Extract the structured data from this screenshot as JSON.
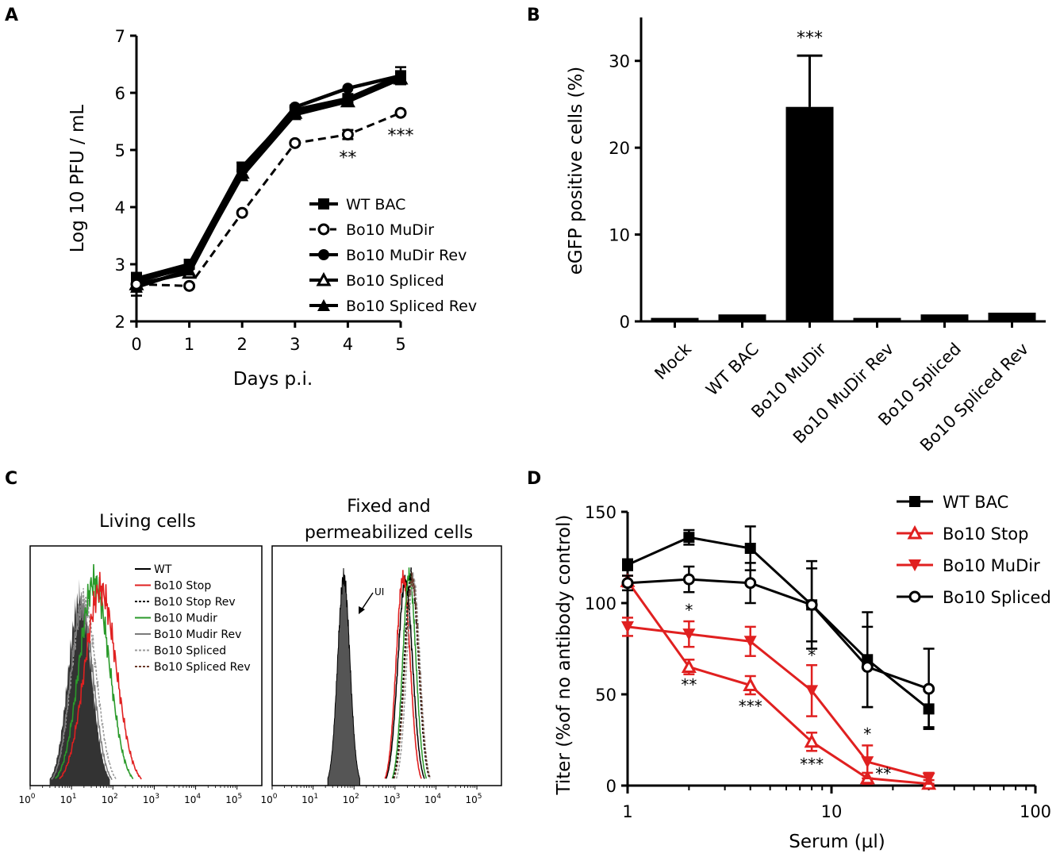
{
  "panels": {
    "A": "A",
    "B": "B",
    "C": "C",
    "D": "D"
  },
  "chart_data": [
    {
      "id": "A",
      "type": "line",
      "xlabel": "Days p.i.",
      "ylabel": "Log 10 PFU / mL",
      "xlim": [
        0,
        5
      ],
      "ylim": [
        2,
        7
      ],
      "xticks": [
        "0",
        "1",
        "2",
        "3",
        "4",
        "5"
      ],
      "yticks": [
        "2",
        "3",
        "4",
        "5",
        "6",
        "7"
      ],
      "x": [
        0,
        1,
        2,
        3,
        4,
        5
      ],
      "series": [
        {
          "name": "WT BAC",
          "marker": "square",
          "style": "solid",
          "values": [
            2.75,
            3.0,
            4.7,
            5.7,
            5.9,
            6.3
          ],
          "err": [
            0.08,
            0.05,
            0.08,
            0.05,
            0.05,
            0.15
          ]
        },
        {
          "name": "Bo10 MuDir",
          "marker": "circle-open",
          "style": "dashed",
          "values": [
            2.65,
            2.62,
            3.9,
            5.12,
            5.27,
            5.65
          ],
          "err": [
            0.2,
            0.05,
            0.05,
            0.06,
            0.08,
            0.05
          ]
        },
        {
          "name": "Bo10 MuDir Rev",
          "marker": "circle",
          "style": "solid",
          "values": [
            2.7,
            2.95,
            4.65,
            5.75,
            6.08,
            6.3
          ],
          "err": [
            0.1,
            0.05,
            0.05,
            0.05,
            0.05,
            0.05
          ]
        },
        {
          "name": "Bo10 Spliced",
          "marker": "triangle-open",
          "style": "solid",
          "values": [
            2.65,
            2.85,
            4.6,
            5.65,
            5.85,
            6.25
          ],
          "err": [
            0.08,
            0.05,
            0.05,
            0.05,
            0.05,
            0.05
          ]
        },
        {
          "name": "Bo10 Spliced Rev",
          "marker": "triangle",
          "style": "solid",
          "values": [
            2.6,
            2.9,
            4.55,
            5.62,
            5.85,
            6.25
          ],
          "err": [
            0.08,
            0.05,
            0.05,
            0.05,
            0.05,
            0.05
          ]
        }
      ],
      "annotations": [
        {
          "x": 4,
          "label": "**"
        },
        {
          "x": 5,
          "label": "***"
        }
      ]
    },
    {
      "id": "B",
      "type": "bar",
      "ylabel": "eGFP positive cells (%)",
      "ylim": [
        0,
        35
      ],
      "yticks": [
        "0",
        "10",
        "20",
        "30"
      ],
      "categories": [
        "Mock",
        "WT BAC",
        "Bo10 MuDir",
        "Bo10 MuDir Rev",
        "Bo10 Spliced",
        "Bo10 Spliced Rev"
      ],
      "values": [
        0.4,
        0.8,
        24.7,
        0.4,
        0.8,
        1.0
      ],
      "err": [
        0.05,
        0.1,
        5.9,
        0.05,
        0.1,
        0.2
      ],
      "annotations": [
        {
          "category": "Bo10 MuDir",
          "label": "***"
        }
      ]
    },
    {
      "id": "C",
      "type": "area",
      "subplots": [
        {
          "title": "Living cells"
        },
        {
          "title_line1": "Fixed and",
          "title_line2": "permeabilized cells",
          "annotation": "UI"
        }
      ],
      "xticks": [
        "10^0",
        "10^1",
        "10^2",
        "10^3",
        "10^4",
        "10^5"
      ],
      "xscale": "log",
      "xlim": [
        1,
        100000
      ],
      "legend": [
        {
          "name": "WT",
          "color": "#000000",
          "style": "solid"
        },
        {
          "name": "Bo10 Stop",
          "color": "#e02020",
          "style": "solid"
        },
        {
          "name": "Bo10 Stop Rev",
          "color": "#000000",
          "style": "dotted"
        },
        {
          "name": "Bo10 Mudir",
          "color": "#2a9a2a",
          "style": "solid"
        },
        {
          "name": "Bo10 Mudir Rev",
          "color": "#7a7a7a",
          "style": "solid"
        },
        {
          "name": "Bo10 Spliced",
          "color": "#999999",
          "style": "dotted"
        },
        {
          "name": "Bo10 Spliced Rev",
          "color": "#6b3a2a",
          "style": "dotted"
        }
      ]
    },
    {
      "id": "D",
      "type": "line",
      "xlabel": "Serum (µl)",
      "ylabel": "Titer (%of no antibody control)",
      "xscale": "log",
      "xlim": [
        1,
        100
      ],
      "ylim": [
        0,
        150
      ],
      "xticks": [
        "1",
        "10",
        "100"
      ],
      "yticks": [
        "0",
        "50",
        "100",
        "150"
      ],
      "x": [
        1,
        2,
        4,
        8,
        15,
        30
      ],
      "series": [
        {
          "name": "WT BAC",
          "color": "#000000",
          "marker": "square",
          "values": [
            121,
            136,
            130,
            99,
            69,
            42
          ],
          "err": [
            3,
            4,
            12,
            20,
            26,
            10
          ]
        },
        {
          "name": "Bo10 Stop",
          "color": "#e02020",
          "marker": "triangle-open",
          "values": [
            112,
            65,
            55,
            24,
            4,
            1
          ],
          "err": [
            3,
            4,
            5,
            5,
            3,
            2
          ]
        },
        {
          "name": "Bo10 MuDir",
          "color": "#e02020",
          "marker": "triangle-down",
          "values": [
            87,
            83,
            79,
            52,
            13,
            4
          ],
          "err": [
            5,
            7,
            8,
            14,
            9,
            3
          ]
        },
        {
          "name": "Bo10 Spliced",
          "color": "#000000",
          "marker": "circle-open",
          "values": [
            111,
            113,
            111,
            99,
            65,
            53
          ],
          "err": [
            4,
            7,
            11,
            24,
            22,
            22
          ]
        }
      ],
      "annotations": [
        {
          "x": 2,
          "label": "*",
          "position": "above"
        },
        {
          "x": 2,
          "label": "**",
          "position": "below"
        },
        {
          "x": 4,
          "label": "***",
          "position": "below"
        },
        {
          "x": 8,
          "label": "*",
          "position": "above"
        },
        {
          "x": 8,
          "label": "***",
          "position": "below"
        },
        {
          "x": 15,
          "label": "*",
          "position": "above"
        },
        {
          "x": 15,
          "label": "**",
          "position": "below"
        }
      ]
    }
  ]
}
